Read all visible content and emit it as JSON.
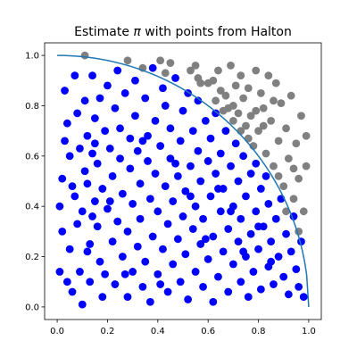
{
  "chart_data": {
    "type": "scatter",
    "title": {
      "prefix": "Estimate ",
      "symbol": "π",
      "suffix": " with points from Halton"
    },
    "xlabel": "",
    "ylabel": "",
    "xlim": [
      -0.05,
      1.05
    ],
    "ylim": [
      -0.05,
      1.05
    ],
    "xticks": [
      "0.0",
      "0.2",
      "0.4",
      "0.6",
      "0.8",
      "1.0"
    ],
    "yticks": [
      "0.0",
      "0.2",
      "0.4",
      "0.6",
      "0.8",
      "1.0"
    ],
    "grid": false,
    "legend": "none",
    "curve": {
      "equation": "x^2 + y^2 = 1",
      "domain": [
        0,
        1
      ],
      "color": "#1f77b4"
    },
    "series": [
      {
        "color": "#0000ff",
        "points": [
          [
            0.01,
            0.14
          ],
          [
            0.01,
            0.4
          ],
          [
            0.02,
            0.3
          ],
          [
            0.02,
            0.51
          ],
          [
            0.03,
            0.86
          ],
          [
            0.03,
            0.66
          ],
          [
            0.04,
            0.73
          ],
          [
            0.04,
            0.1
          ],
          [
            0.05,
            0.23
          ],
          [
            0.05,
            0.6
          ],
          [
            0.06,
            0.06
          ],
          [
            0.07,
            0.44
          ],
          [
            0.07,
            0.92
          ],
          [
            0.08,
            0.33
          ],
          [
            0.08,
            0.77
          ],
          [
            0.09,
            0.63
          ],
          [
            0.09,
            0.14
          ],
          [
            0.1,
            0.01
          ],
          [
            0.1,
            0.38
          ],
          [
            0.11,
            0.54
          ],
          [
            0.11,
            0.82
          ],
          [
            0.12,
            0.22
          ],
          [
            0.12,
            0.49
          ],
          [
            0.12,
            0.68
          ],
          [
            0.13,
            0.25
          ],
          [
            0.13,
            0.1
          ],
          [
            0.14,
            0.61
          ],
          [
            0.14,
            0.92
          ],
          [
            0.15,
            0.42
          ],
          [
            0.15,
            0.75
          ],
          [
            0.16,
            0.32
          ],
          [
            0.16,
            0.57
          ],
          [
            0.17,
            0.83
          ],
          [
            0.17,
            0.18
          ],
          [
            0.18,
            0.04
          ],
          [
            0.18,
            0.47
          ],
          [
            0.19,
            0.7
          ],
          [
            0.19,
            0.13
          ],
          [
            0.2,
            0.39
          ],
          [
            0.2,
            0.88
          ],
          [
            0.21,
            0.63
          ],
          [
            0.22,
            0.26
          ],
          [
            0.22,
            0.52
          ],
          [
            0.23,
            0.79
          ],
          [
            0.23,
            0.09
          ],
          [
            0.24,
            0.34
          ],
          [
            0.24,
            0.94
          ],
          [
            0.25,
            0.59
          ],
          [
            0.25,
            0.71
          ],
          [
            0.26,
            0.45
          ],
          [
            0.26,
            0.2
          ],
          [
            0.27,
            0.85
          ],
          [
            0.28,
            0.04
          ],
          [
            0.28,
            0.3
          ],
          [
            0.29,
            0.67
          ],
          [
            0.29,
            0.55
          ],
          [
            0.3,
            0.14
          ],
          [
            0.3,
            0.41
          ],
          [
            0.31,
            0.9
          ],
          [
            0.31,
            0.76
          ],
          [
            0.32,
            0.24
          ],
          [
            0.32,
            0.62
          ],
          [
            0.33,
            0.35
          ],
          [
            0.33,
            0.49
          ],
          [
            0.34,
            0.08
          ],
          [
            0.35,
            0.83
          ],
          [
            0.35,
            0.18
          ],
          [
            0.36,
            0.58
          ],
          [
            0.36,
            0.68
          ],
          [
            0.37,
            0.43
          ],
          [
            0.37,
            0.02
          ],
          [
            0.38,
            0.28
          ],
          [
            0.38,
            0.95
          ],
          [
            0.39,
            0.53
          ],
          [
            0.39,
            0.74
          ],
          [
            0.4,
            0.13
          ],
          [
            0.4,
            0.38
          ],
          [
            0.41,
            0.64
          ],
          [
            0.42,
            0.87
          ],
          [
            0.42,
            0.23
          ],
          [
            0.43,
            0.48
          ],
          [
            0.43,
            0.8
          ],
          [
            0.44,
            0.06
          ],
          [
            0.44,
            0.33
          ],
          [
            0.45,
            0.59
          ],
          [
            0.45,
            0.71
          ],
          [
            0.46,
            0.17
          ],
          [
            0.46,
            0.42
          ],
          [
            0.47,
            0.91
          ],
          [
            0.48,
            0.27
          ],
          [
            0.48,
            0.52
          ],
          [
            0.49,
            0.66
          ],
          [
            0.49,
            0.1
          ],
          [
            0.5,
            0.36
          ],
          [
            0.5,
            0.78
          ],
          [
            0.51,
            0.46
          ],
          [
            0.51,
            0.21
          ],
          [
            0.52,
            0.85
          ],
          [
            0.52,
            0.03
          ],
          [
            0.53,
            0.56
          ],
          [
            0.54,
            0.31
          ],
          [
            0.54,
            0.7
          ],
          [
            0.55,
            0.14
          ],
          [
            0.55,
            0.4
          ],
          [
            0.56,
            0.62
          ],
          [
            0.56,
            0.82
          ],
          [
            0.57,
            0.25
          ],
          [
            0.57,
            0.5
          ],
          [
            0.58,
            0.08
          ],
          [
            0.58,
            0.35
          ],
          [
            0.59,
            0.74
          ],
          [
            0.6,
            0.58
          ],
          [
            0.6,
            0.19
          ],
          [
            0.61,
            0.44
          ],
          [
            0.61,
            0.67
          ],
          [
            0.62,
            0.28
          ],
          [
            0.62,
            0.02
          ],
          [
            0.63,
            0.53
          ],
          [
            0.63,
            0.77
          ],
          [
            0.64,
            0.12
          ],
          [
            0.65,
            0.38
          ],
          [
            0.65,
            0.61
          ],
          [
            0.66,
            0.22
          ],
          [
            0.66,
            0.47
          ],
          [
            0.67,
            0.7
          ],
          [
            0.68,
            0.06
          ],
          [
            0.68,
            0.31
          ],
          [
            0.69,
            0.56
          ],
          [
            0.7,
            0.17
          ],
          [
            0.7,
            0.4
          ],
          [
            0.71,
            0.65
          ],
          [
            0.72,
            0.26
          ],
          [
            0.72,
            0.5
          ],
          [
            0.73,
            0.1
          ],
          [
            0.73,
            0.35
          ],
          [
            0.74,
            0.6
          ],
          [
            0.75,
            0.2
          ],
          [
            0.75,
            0.44
          ],
          [
            0.76,
            0.04
          ],
          [
            0.77,
            0.29
          ],
          [
            0.77,
            0.53
          ],
          [
            0.78,
            0.14
          ],
          [
            0.79,
            0.38
          ],
          [
            0.79,
            0.57
          ],
          [
            0.8,
            0.23
          ],
          [
            0.81,
            0.47
          ],
          [
            0.81,
            0.07
          ],
          [
            0.82,
            0.32
          ],
          [
            0.83,
            0.52
          ],
          [
            0.84,
            0.16
          ],
          [
            0.84,
            0.41
          ],
          [
            0.85,
            0.26
          ],
          [
            0.86,
            0.09
          ],
          [
            0.87,
            0.35
          ],
          [
            0.88,
            0.2
          ],
          [
            0.89,
            0.43
          ],
          [
            0.9,
            0.12
          ],
          [
            0.91,
            0.29
          ],
          [
            0.92,
            0.05
          ],
          [
            0.93,
            0.22
          ],
          [
            0.94,
            0.36
          ],
          [
            0.95,
            0.15
          ],
          [
            0.96,
            0.08
          ],
          [
            0.97,
            0.26
          ],
          [
            0.98,
            0.04
          ],
          [
            0.06,
            0.48
          ],
          [
            0.14,
            0.36
          ],
          [
            0.21,
            0.42
          ],
          [
            0.27,
            0.13
          ],
          [
            0.34,
            0.66
          ],
          [
            0.41,
            0.09
          ],
          [
            0.47,
            0.57
          ],
          [
            0.53,
            0.44
          ],
          [
            0.59,
            0.27
          ],
          [
            0.64,
            0.47
          ],
          [
            0.69,
            0.38
          ],
          [
            0.74,
            0.22
          ],
          [
            0.8,
            0.32
          ],
          [
            0.85,
            0.18
          ],
          [
            0.15,
            0.65
          ]
        ]
      },
      {
        "color": "#808080",
        "points": [
          [
            0.11,
            1.0
          ],
          [
            0.28,
            0.98
          ],
          [
            0.34,
            0.95
          ],
          [
            0.41,
            0.98
          ],
          [
            0.43,
            0.93
          ],
          [
            0.45,
            0.97
          ],
          [
            0.53,
            0.94
          ],
          [
            0.55,
            0.96
          ],
          [
            0.56,
            0.91
          ],
          [
            0.6,
            0.89
          ],
          [
            0.62,
            0.9
          ],
          [
            0.63,
            0.82
          ],
          [
            0.64,
            0.94
          ],
          [
            0.65,
            0.86
          ],
          [
            0.67,
            0.84
          ],
          [
            0.68,
            0.79
          ],
          [
            0.69,
            0.96
          ],
          [
            0.7,
            0.8
          ],
          [
            0.71,
            0.88
          ],
          [
            0.72,
            0.77
          ],
          [
            0.73,
            0.92
          ],
          [
            0.74,
            0.83
          ],
          [
            0.75,
            0.72
          ],
          [
            0.76,
            0.87
          ],
          [
            0.77,
            0.76
          ],
          [
            0.78,
            0.64
          ],
          [
            0.79,
            0.94
          ],
          [
            0.8,
            0.7
          ],
          [
            0.81,
            0.85
          ],
          [
            0.82,
            0.79
          ],
          [
            0.83,
            0.61
          ],
          [
            0.84,
            0.92
          ],
          [
            0.85,
            0.74
          ],
          [
            0.86,
            0.56
          ],
          [
            0.87,
            0.89
          ],
          [
            0.88,
            0.66
          ],
          [
            0.89,
            0.81
          ],
          [
            0.9,
            0.48
          ],
          [
            0.91,
            0.71
          ],
          [
            0.92,
            0.59
          ],
          [
            0.93,
            0.84
          ],
          [
            0.94,
            0.43
          ],
          [
            0.95,
            0.65
          ],
          [
            0.96,
            0.51
          ],
          [
            0.97,
            0.76
          ],
          [
            0.98,
            0.38
          ],
          [
            0.99,
            0.56
          ],
          [
            0.99,
            0.68
          ],
          [
            0.96,
            0.3
          ],
          [
            0.94,
            0.55
          ],
          [
            0.91,
            0.38
          ],
          [
            0.88,
            0.52
          ],
          [
            0.86,
            0.82
          ],
          [
            0.82,
            0.72
          ],
          [
            0.79,
            0.78
          ],
          [
            0.76,
            0.67
          ],
          [
            0.73,
            0.7
          ],
          [
            0.7,
            0.74
          ],
          [
            0.66,
            0.78
          ],
          [
            0.57,
            0.89
          ]
        ]
      }
    ]
  }
}
